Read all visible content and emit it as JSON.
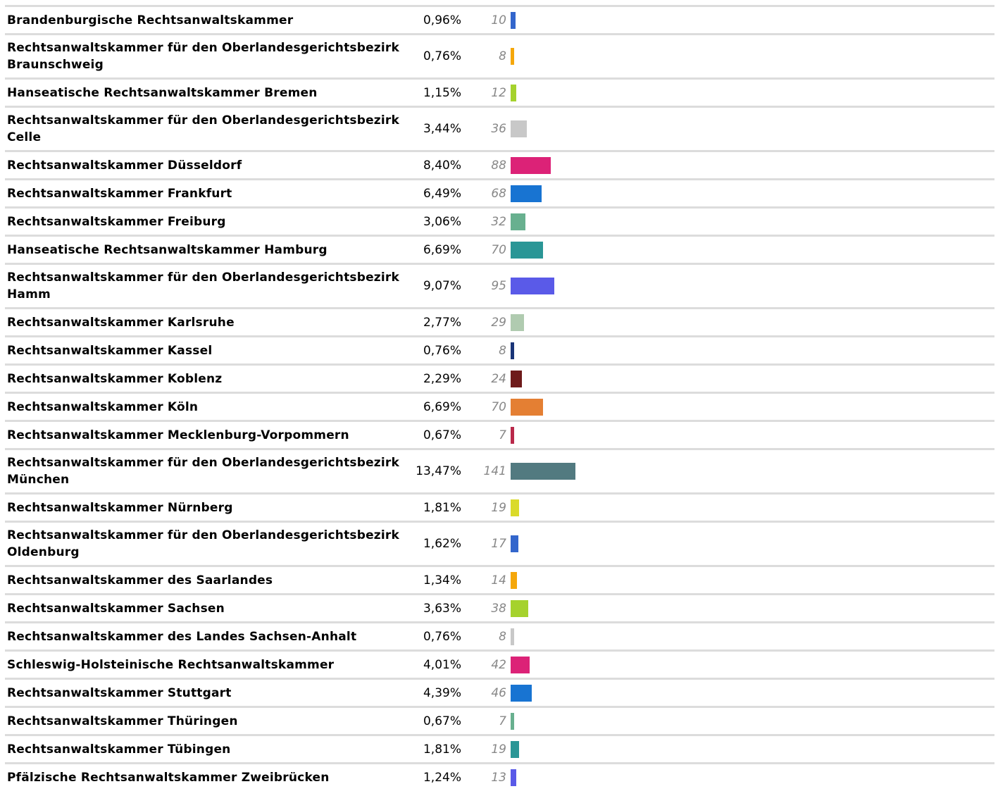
{
  "rows": [
    {
      "label": "Brandenburgische Rechtsanwaltskammer",
      "percent": "0,96%",
      "count": 10,
      "color": "#3366cc"
    },
    {
      "label": "Rechtsanwaltskammer für den Oberlandesgerichtsbezirk Braunschweig",
      "percent": "0,76%",
      "count": 8,
      "color": "#f5a70a"
    },
    {
      "label": "Hanseatische Rechtsanwaltskammer Bremen",
      "percent": "1,15%",
      "count": 12,
      "color": "#a5d22d"
    },
    {
      "label": "Rechtsanwaltskammer für den Oberlandesgerichtsbezirk Celle",
      "percent": "3,44%",
      "count": 36,
      "color": "#c8c8c8"
    },
    {
      "label": "Rechtsanwaltskammer Düsseldorf",
      "percent": "8,40%",
      "count": 88,
      "color": "#dc2277"
    },
    {
      "label": "Rechtsanwaltskammer Frankfurt",
      "percent": "6,49%",
      "count": 68,
      "color": "#1874d2"
    },
    {
      "label": "Rechtsanwaltskammer Freiburg",
      "percent": "3,06%",
      "count": 32,
      "color": "#68b08f"
    },
    {
      "label": "Hanseatische Rechtsanwaltskammer Hamburg",
      "percent": "6,69%",
      "count": 70,
      "color": "#2a9696"
    },
    {
      "label": "Rechtsanwaltskammer für den Oberlandesgerichtsbezirk Hamm",
      "percent": "9,07%",
      "count": 95,
      "color": "#5a5ae8"
    },
    {
      "label": "Rechtsanwaltskammer Karlsruhe",
      "percent": "2,77%",
      "count": 29,
      "color": "#b0cbb0"
    },
    {
      "label": "Rechtsanwaltskammer Kassel",
      "percent": "0,76%",
      "count": 8,
      "color": "#1a3578"
    },
    {
      "label": "Rechtsanwaltskammer Koblenz",
      "percent": "2,29%",
      "count": 24,
      "color": "#6e1a1a"
    },
    {
      "label": "Rechtsanwaltskammer Köln",
      "percent": "6,69%",
      "count": 70,
      "color": "#e47f33"
    },
    {
      "label": "Rechtsanwaltskammer Mecklenburg-Vorpommern",
      "percent": "0,67%",
      "count": 7,
      "color": "#b9294a"
    },
    {
      "label": "Rechtsanwaltskammer für den Oberlandesgerichtsbezirk München",
      "percent": "13,47%",
      "count": 141,
      "color": "#527a80"
    },
    {
      "label": "Rechtsanwaltskammer Nürnberg",
      "percent": "1,81%",
      "count": 19,
      "color": "#dada2a"
    },
    {
      "label": "Rechtsanwaltskammer für den Oberlandesgerichtsbezirk Oldenburg",
      "percent": "1,62%",
      "count": 17,
      "color": "#3366cc"
    },
    {
      "label": "Rechtsanwaltskammer des Saarlandes",
      "percent": "1,34%",
      "count": 14,
      "color": "#f5a70a"
    },
    {
      "label": "Rechtsanwaltskammer Sachsen",
      "percent": "3,63%",
      "count": 38,
      "color": "#a5d22d"
    },
    {
      "label": "Rechtsanwaltskammer des Landes Sachsen-Anhalt",
      "percent": "0,76%",
      "count": 8,
      "color": "#c8c8c8"
    },
    {
      "label": "Schleswig-Holsteinische Rechtsanwaltskammer",
      "percent": "4,01%",
      "count": 42,
      "color": "#dc2277"
    },
    {
      "label": "Rechtsanwaltskammer Stuttgart",
      "percent": "4,39%",
      "count": 46,
      "color": "#1874d2"
    },
    {
      "label": "Rechtsanwaltskammer Thüringen",
      "percent": "0,67%",
      "count": 7,
      "color": "#68b08f"
    },
    {
      "label": "Rechtsanwaltskammer Tübingen",
      "percent": "1,81%",
      "count": 19,
      "color": "#2a9696"
    },
    {
      "label": "Pfälzische Rechtsanwaltskammer Zweibrücken",
      "percent": "1,24%",
      "count": 13,
      "color": "#5a5ae8"
    }
  ]
}
